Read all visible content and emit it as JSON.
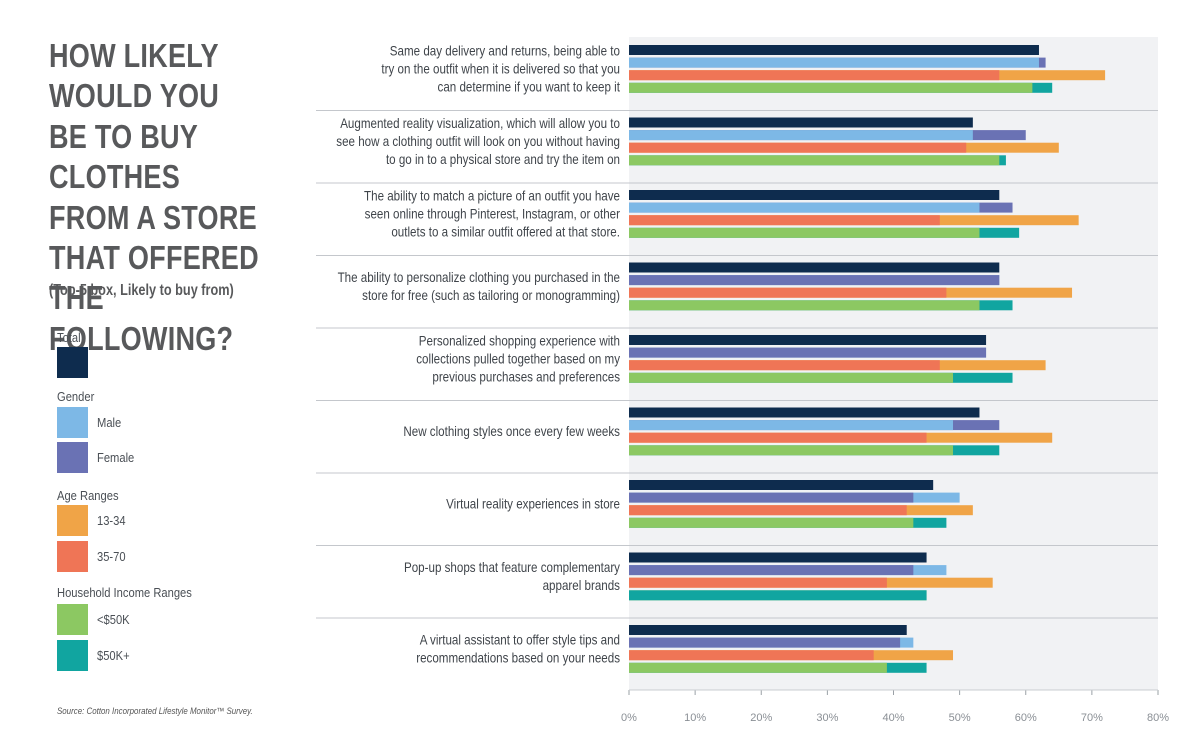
{
  "title": "HOW LIKELY WOULD YOU BE TO BUY CLOTHES FROM A STORE THAT OFFERED THE FOLLOWING?",
  "subtitle": "(Top-5 box, Likely to buy from)",
  "source": "Source: Cotton Incorporated Lifestyle Monitor™ Survey.",
  "legend": {
    "groups": [
      {
        "heading": "Total",
        "items": [
          {
            "label": "",
            "series": "Total"
          }
        ]
      },
      {
        "heading": "Gender",
        "items": [
          {
            "label": "Male",
            "series": "Male"
          },
          {
            "label": "Female",
            "series": "Female"
          }
        ]
      },
      {
        "heading": "Age Ranges",
        "items": [
          {
            "label": "13-34",
            "series": "13-34"
          },
          {
            "label": "35-70",
            "series": "35-70"
          }
        ]
      },
      {
        "heading": "Household Income Ranges",
        "items": [
          {
            "label": "<$50K",
            "series": "<$50K"
          },
          {
            "label": "$50K+",
            "series": "$50K+"
          }
        ]
      }
    ]
  },
  "colors": {
    "Total": "#0e2c4e",
    "Male": "#7db8e6",
    "Female": "#6a72b4",
    "13-34": "#f0a447",
    "35-70": "#ef7556",
    "<$50K": "#8cc862",
    "$50K+": "#11a5a0",
    "plot_bg": "#f1f2f4",
    "separator": "#c4c7cc"
  },
  "chart_data": {
    "type": "bar",
    "orientation": "horizontal",
    "title": "HOW LIKELY WOULD YOU BE TO BUY CLOTHES FROM A STORE THAT OFFERED THE FOLLOWING?",
    "xlabel": "",
    "ylabel": "",
    "xlim": [
      0,
      80
    ],
    "xticks": [
      0,
      10,
      20,
      30,
      40,
      50,
      60,
      70,
      80
    ],
    "tick_format": "%",
    "grid": false,
    "legend_position": "left",
    "bar_rows": [
      {
        "name": "Total",
        "segments": [
          "Total"
        ]
      },
      {
        "name": "Gender",
        "segments": [
          "Male",
          "Female"
        ]
      },
      {
        "name": "Age Ranges",
        "segments": [
          "35-70",
          "13-34"
        ]
      },
      {
        "name": "Household Income Ranges",
        "segments": [
          "<$50K",
          "$50K+"
        ]
      }
    ],
    "series": [
      {
        "name": "Total",
        "values": [
          62,
          52,
          56,
          56,
          54,
          53,
          46,
          45,
          42
        ]
      },
      {
        "name": "Male",
        "values": [
          62,
          52,
          53,
          56,
          54,
          49,
          50,
          48,
          43
        ]
      },
      {
        "name": "Female",
        "values": [
          63,
          60,
          58,
          56,
          54,
          56,
          43,
          43,
          41
        ]
      },
      {
        "name": "13-34",
        "values": [
          72,
          65,
          68,
          67,
          63,
          64,
          52,
          55,
          49
        ]
      },
      {
        "name": "35-70",
        "values": [
          56,
          51,
          47,
          48,
          47,
          45,
          42,
          39,
          37
        ]
      },
      {
        "name": "<$50K",
        "values": [
          61,
          56,
          53,
          53,
          49,
          49,
          43,
          45,
          39
        ]
      },
      {
        "name": "$50K+",
        "values": [
          64,
          57,
          59,
          58,
          58,
          56,
          48,
          45,
          45
        ]
      }
    ],
    "categories": [
      {
        "lines": [
          "Same day delivery and returns, being able to",
          "try on the outfit when it is delivered so that you",
          "can determine if you want to keep it"
        ]
      },
      {
        "lines": [
          "Augmented reality visualization, which will allow you to",
          "see how a clothing outfit will look on you without having",
          "to go in to a physical store and try the item on"
        ]
      },
      {
        "lines": [
          "The ability to match a picture of an outfit you have",
          "seen online through Pinterest, Instagram, or other",
          "outlets to a similar outfit offered at that store."
        ]
      },
      {
        "lines": [
          "The ability to personalize clothing you purchased in the",
          "store for free (such as tailoring or monogramming)"
        ]
      },
      {
        "lines": [
          "Personalized shopping experience with",
          "collections pulled together based on my",
          "previous purchases and preferences"
        ]
      },
      {
        "lines": [
          "New clothing styles once every few weeks"
        ]
      },
      {
        "lines": [
          "Virtual reality experiences in store"
        ]
      },
      {
        "lines": [
          "Pop-up shops that feature complementary",
          "apparel brands"
        ]
      },
      {
        "lines": [
          "A virtual assistant to offer style tips and",
          "recommendations based on your needs"
        ]
      }
    ]
  }
}
